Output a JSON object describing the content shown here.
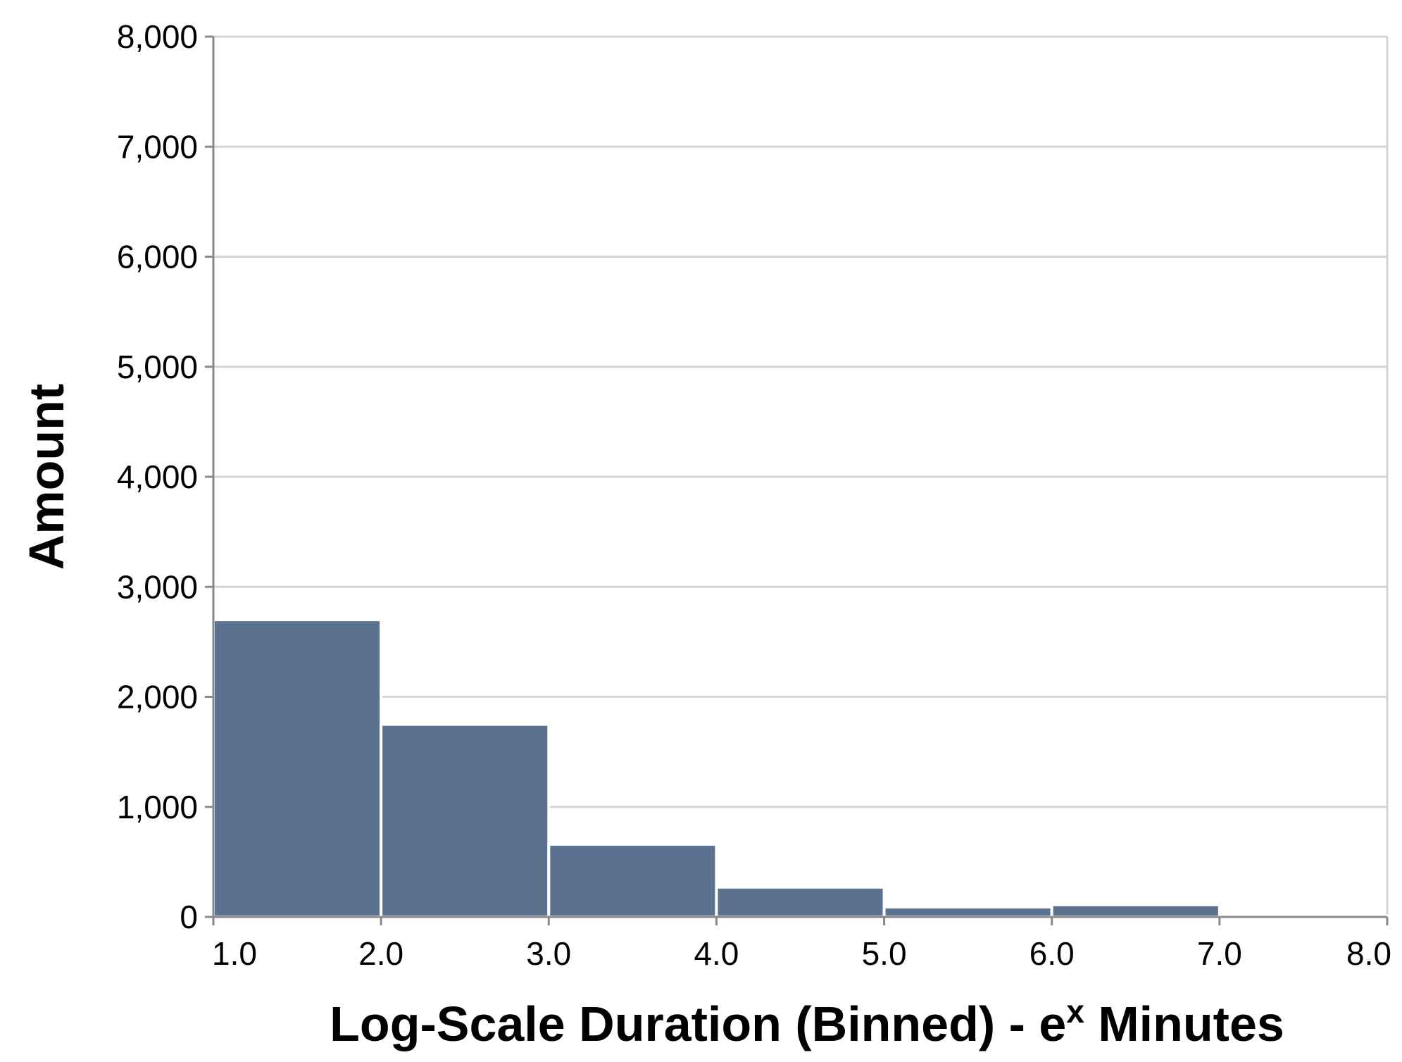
{
  "chart_data": {
    "type": "bar",
    "x": {
      "label_prefix": "Log-Scale Duration (Binned) - e",
      "label_superscript": "x",
      "label_suffix": " Minutes",
      "range": [
        1.0,
        8.0
      ],
      "ticks": [
        1.0,
        2.0,
        3.0,
        4.0,
        5.0,
        6.0,
        7.0,
        8.0
      ],
      "tick_labels": [
        "1.0",
        "2.0",
        "3.0",
        "4.0",
        "5.0",
        "6.0",
        "7.0",
        "8.0"
      ]
    },
    "y": {
      "label": "Amount",
      "range": [
        0,
        8000
      ],
      "ticks": [
        0,
        1000,
        2000,
        3000,
        4000,
        5000,
        6000,
        7000,
        8000
      ],
      "tick_labels": [
        "0",
        "1,000",
        "2,000",
        "3,000",
        "4,000",
        "5,000",
        "6,000",
        "7,000",
        "8,000"
      ]
    },
    "bins": [
      {
        "x0": 1.0,
        "x1": 2.0,
        "value": 2700
      },
      {
        "x0": 2.0,
        "x1": 3.0,
        "value": 1750
      },
      {
        "x0": 3.0,
        "x1": 4.0,
        "value": 660
      },
      {
        "x0": 4.0,
        "x1": 5.0,
        "value": 270
      },
      {
        "x0": 5.0,
        "x1": 6.0,
        "value": 90
      },
      {
        "x0": 6.0,
        "x1": 7.0,
        "value": 110
      },
      {
        "x0": 7.0,
        "x1": 8.0,
        "value": 10
      }
    ],
    "grid": true,
    "colors": {
      "bar": "#5b7190",
      "grid": "#d4d4d4",
      "axis": "#888888"
    }
  }
}
